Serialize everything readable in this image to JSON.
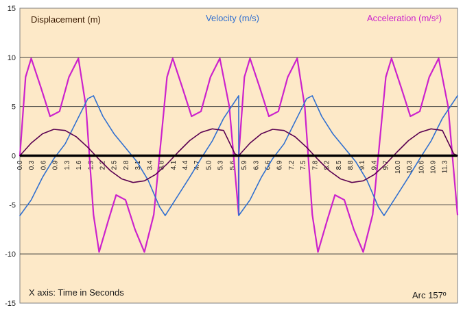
{
  "chart_data": {
    "type": "line",
    "title": "",
    "xlabel": "X axis: Time in Seconds",
    "ylabel": "",
    "xlim": [
      0,
      11.6
    ],
    "ylim": [
      -15,
      15
    ],
    "grid": true,
    "y_ticks": [
      15,
      10,
      5,
      0,
      -5,
      -10,
      -15
    ],
    "x_tick_labels": [
      "0.0",
      "0.3",
      "0.6",
      "0.9",
      "1.3",
      "1.6",
      "1.9",
      "2.2",
      "2.5",
      "2.8",
      "3.1",
      "3.4",
      "3.8",
      "4.1",
      "4.4",
      "4.7",
      "5.0",
      "5.3",
      "5.6",
      "5.9",
      "6.3",
      "6.6",
      "6.9",
      "7.2",
      "7.5",
      "7.8",
      "8.2",
      "8.5",
      "8.8",
      "9.1",
      "9.4",
      "9.7",
      "10.0",
      "10.3",
      "10.6",
      "10.9",
      "11.3"
    ],
    "x_tick_step": 0.313,
    "annotation": "Arc  157º",
    "period": 5.8,
    "series": [
      {
        "name": "Displacement (m)",
        "color": "#5a0050",
        "x": [
          0,
          0.3,
          0.6,
          0.9,
          1.2,
          1.5,
          1.8,
          2.1,
          2.4,
          2.7,
          3.0,
          3.3,
          3.6,
          3.9,
          4.2,
          4.5,
          4.8,
          5.1,
          5.4,
          5.7,
          5.8
        ],
        "y": [
          0,
          1.28,
          2.23,
          2.68,
          2.56,
          1.91,
          0.85,
          -0.38,
          -1.53,
          -2.37,
          -2.73,
          -2.56,
          -1.91,
          -0.85,
          0.38,
          1.53,
          2.37,
          2.73,
          2.56,
          0.18,
          0
        ]
      },
      {
        "name": "Velocity (m/s)",
        "color": "#2f6fd0",
        "x": [
          0,
          0.3,
          0.6,
          0.9,
          1.2,
          1.5,
          1.8,
          1.95,
          2.2,
          2.5,
          2.8,
          3.1,
          3.4,
          3.7,
          3.85,
          4.2,
          4.5,
          4.8,
          5.1,
          5.4,
          5.8
        ],
        "y": [
          -6.1,
          -4.5,
          -2.2,
          -0.3,
          1.2,
          3.5,
          5.8,
          6.1,
          4.0,
          2.2,
          0.8,
          -0.6,
          -2.5,
          -5.2,
          -6.1,
          -4.0,
          -2.2,
          -0.3,
          1.5,
          3.8,
          6.1
        ]
      },
      {
        "name": "Acceleration (m/s²)",
        "color": "#cc22cc",
        "x": [
          0,
          0.15,
          0.3,
          0.55,
          0.8,
          1.05,
          1.3,
          1.55,
          1.75,
          1.95,
          2.1,
          2.35,
          2.55,
          2.8,
          3.05,
          3.3,
          3.55,
          3.75,
          3.9,
          4.05,
          4.3,
          4.55,
          4.8,
          5.05,
          5.3,
          5.55,
          5.8
        ],
        "y": [
          0,
          8.0,
          9.9,
          7.0,
          4.0,
          4.5,
          8.0,
          9.9,
          5.0,
          -6.0,
          -9.8,
          -6.5,
          -4.0,
          -4.5,
          -7.5,
          -9.8,
          -6.0,
          2.0,
          8.0,
          9.9,
          7.0,
          4.0,
          4.5,
          8.0,
          9.9,
          5.0,
          -6.0
        ]
      }
    ]
  }
}
